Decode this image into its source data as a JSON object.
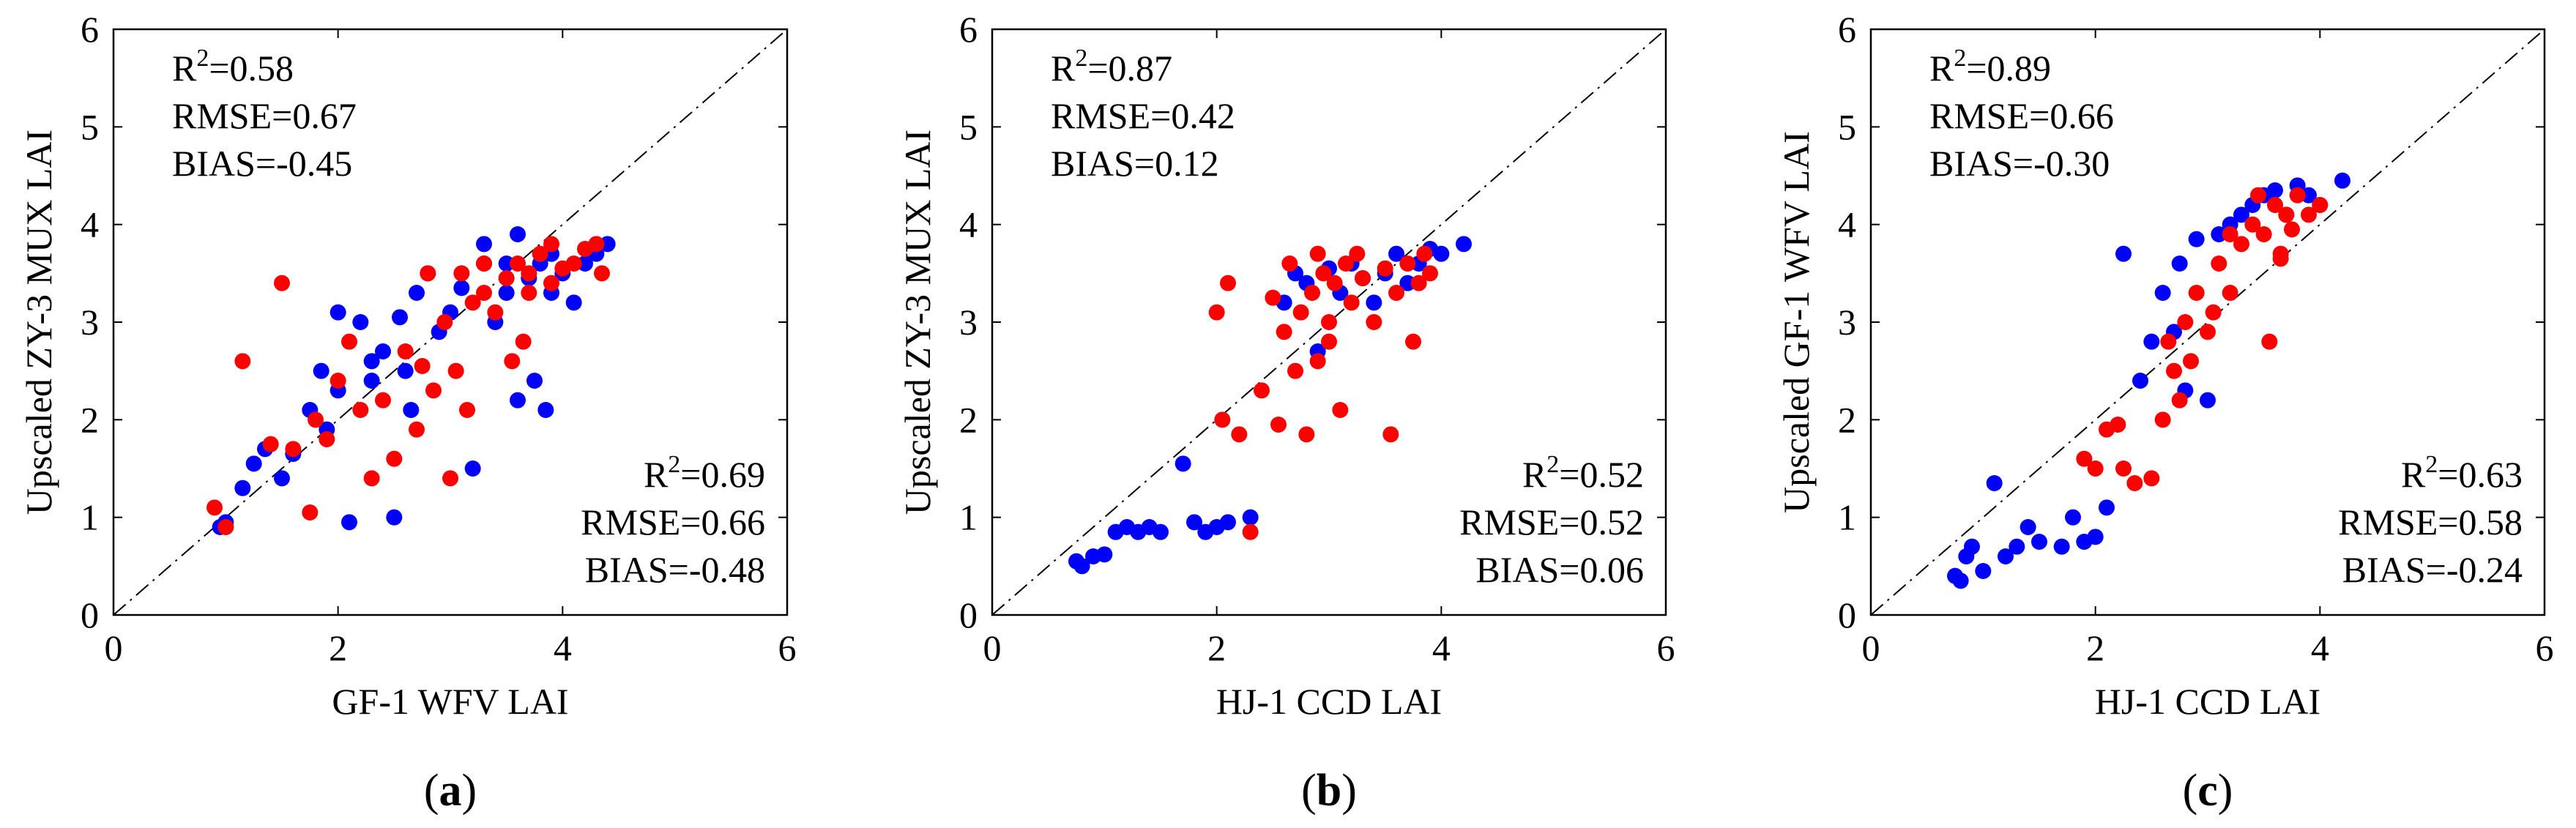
{
  "chart_data": [
    {
      "type": "scatter",
      "panel_label_prefix": "(",
      "panel_label": "a",
      "panel_label_suffix": ")",
      "xlabel": "GF-1 WFV LAI",
      "ylabel": "Upscaled ZY-3 MUX LAI",
      "xlim": [
        0,
        6
      ],
      "ylim": [
        0,
        6
      ],
      "x_ticks": [
        "0",
        "2",
        "4",
        "6"
      ],
      "y_ticks": [
        "0",
        "1",
        "2",
        "3",
        "4",
        "5",
        "6"
      ],
      "one_to_one_line": true,
      "stats_blue": {
        "r2": "=0.58",
        "rmse": "RMSE=0.67",
        "bias": "BIAS=-0.45"
      },
      "stats_red": {
        "r2": "=0.69",
        "rmse": "RMSE=0.66",
        "bias": "BIAS=-0.48"
      },
      "series": [
        {
          "color": "#0000ff",
          "points": [
            [
              0.95,
              0.9
            ],
            [
              1.0,
              0.95
            ],
            [
              1.15,
              1.3
            ],
            [
              1.25,
              1.55
            ],
            [
              1.35,
              1.7
            ],
            [
              1.5,
              1.4
            ],
            [
              1.6,
              1.65
            ],
            [
              1.75,
              2.1
            ],
            [
              1.85,
              2.5
            ],
            [
              1.9,
              1.9
            ],
            [
              2.0,
              2.3
            ],
            [
              2.1,
              0.95
            ],
            [
              2.2,
              3.0
            ],
            [
              2.3,
              2.4
            ],
            [
              2.4,
              2.7
            ],
            [
              2.5,
              1.0
            ],
            [
              2.55,
              3.05
            ],
            [
              2.65,
              2.1
            ],
            [
              2.7,
              3.3
            ],
            [
              2.8,
              3.5
            ],
            [
              2.9,
              2.9
            ],
            [
              3.0,
              3.1
            ],
            [
              3.1,
              3.35
            ],
            [
              3.2,
              1.5
            ],
            [
              3.3,
              3.6
            ],
            [
              3.4,
              3.0
            ],
            [
              3.5,
              3.3
            ],
            [
              3.6,
              2.2
            ],
            [
              3.7,
              3.45
            ],
            [
              3.75,
              2.4
            ],
            [
              3.8,
              3.6
            ],
            [
              3.85,
              2.1
            ],
            [
              3.9,
              3.3
            ],
            [
              4.0,
              3.5
            ],
            [
              4.1,
              3.2
            ],
            [
              4.2,
              3.6
            ],
            [
              4.3,
              3.7
            ],
            [
              4.4,
              3.8
            ],
            [
              2.3,
              2.6
            ],
            [
              2.6,
              2.5
            ],
            [
              2.0,
              3.1
            ],
            [
              3.3,
              3.8
            ],
            [
              3.5,
              3.6
            ],
            [
              3.6,
              3.9
            ],
            [
              3.9,
              3.7
            ]
          ]
        },
        {
          "color": "#ff0000",
          "points": [
            [
              0.9,
              1.1
            ],
            [
              1.0,
              0.9
            ],
            [
              1.15,
              2.6
            ],
            [
              1.4,
              1.75
            ],
            [
              1.5,
              3.4
            ],
            [
              1.6,
              1.7
            ],
            [
              1.75,
              1.05
            ],
            [
              1.8,
              2.0
            ],
            [
              1.9,
              1.8
            ],
            [
              2.0,
              2.4
            ],
            [
              2.1,
              2.8
            ],
            [
              2.2,
              2.1
            ],
            [
              2.3,
              1.4
            ],
            [
              2.4,
              2.2
            ],
            [
              2.5,
              1.6
            ],
            [
              2.6,
              2.7
            ],
            [
              2.7,
              1.9
            ],
            [
              2.75,
              2.55
            ],
            [
              2.85,
              2.3
            ],
            [
              2.95,
              3.0
            ],
            [
              3.0,
              1.4
            ],
            [
              3.05,
              2.5
            ],
            [
              3.1,
              3.5
            ],
            [
              3.15,
              2.1
            ],
            [
              3.2,
              3.2
            ],
            [
              3.3,
              3.3
            ],
            [
              3.4,
              3.1
            ],
            [
              3.5,
              3.45
            ],
            [
              3.55,
              2.6
            ],
            [
              3.6,
              3.6
            ],
            [
              3.65,
              2.8
            ],
            [
              3.7,
              3.3
            ],
            [
              3.8,
              3.7
            ],
            [
              3.9,
              3.4
            ],
            [
              4.0,
              3.55
            ],
            [
              4.1,
              3.6
            ],
            [
              4.2,
              3.75
            ],
            [
              4.3,
              3.8
            ],
            [
              4.35,
              3.5
            ],
            [
              2.8,
              3.5
            ],
            [
              3.3,
              3.6
            ],
            [
              3.7,
              3.5
            ],
            [
              3.9,
              3.8
            ]
          ]
        }
      ]
    },
    {
      "type": "scatter",
      "panel_label_prefix": "(",
      "panel_label": "b",
      "panel_label_suffix": ")",
      "xlabel": "HJ-1 CCD LAI",
      "ylabel": "Upscaled ZY-3 MUX LAI",
      "xlim": [
        0,
        6
      ],
      "ylim": [
        0,
        6
      ],
      "x_ticks": [
        "0",
        "2",
        "4",
        "6"
      ],
      "y_ticks": [
        "0",
        "1",
        "2",
        "3",
        "4",
        "5",
        "6"
      ],
      "one_to_one_line": true,
      "stats_blue": {
        "r2": "=0.87",
        "rmse": "RMSE=0.42",
        "bias": "BIAS=0.12"
      },
      "stats_red": {
        "r2": "=0.52",
        "rmse": "RMSE=0.52",
        "bias": "BIAS=0.06"
      },
      "series": [
        {
          "color": "#0000ff",
          "points": [
            [
              0.75,
              0.55
            ],
            [
              0.8,
              0.5
            ],
            [
              0.9,
              0.6
            ],
            [
              1.0,
              0.62
            ],
            [
              1.1,
              0.85
            ],
            [
              1.2,
              0.9
            ],
            [
              1.3,
              0.85
            ],
            [
              1.4,
              0.9
            ],
            [
              1.5,
              0.85
            ],
            [
              1.7,
              1.55
            ],
            [
              1.8,
              0.95
            ],
            [
              1.9,
              0.85
            ],
            [
              2.0,
              0.9
            ],
            [
              2.1,
              0.95
            ],
            [
              2.3,
              1.0
            ],
            [
              2.6,
              3.2
            ],
            [
              2.7,
              3.5
            ],
            [
              2.8,
              3.4
            ],
            [
              2.9,
              2.7
            ],
            [
              3.0,
              3.55
            ],
            [
              3.1,
              3.3
            ],
            [
              3.2,
              3.6
            ],
            [
              3.3,
              3.45
            ],
            [
              3.4,
              3.2
            ],
            [
              3.5,
              3.5
            ],
            [
              3.6,
              3.7
            ],
            [
              3.7,
              3.4
            ],
            [
              3.8,
              3.6
            ],
            [
              3.9,
              3.75
            ],
            [
              4.0,
              3.7
            ],
            [
              4.2,
              3.8
            ]
          ]
        },
        {
          "color": "#ff0000",
          "points": [
            [
              2.0,
              3.1
            ],
            [
              2.05,
              2.0
            ],
            [
              2.1,
              3.4
            ],
            [
              2.2,
              1.85
            ],
            [
              2.3,
              0.85
            ],
            [
              2.4,
              2.3
            ],
            [
              2.5,
              3.25
            ],
            [
              2.55,
              1.95
            ],
            [
              2.6,
              2.9
            ],
            [
              2.65,
              3.6
            ],
            [
              2.7,
              2.5
            ],
            [
              2.75,
              3.1
            ],
            [
              2.8,
              1.85
            ],
            [
              2.85,
              3.3
            ],
            [
              2.9,
              2.6
            ],
            [
              2.95,
              3.5
            ],
            [
              3.0,
              3.0
            ],
            [
              3.05,
              3.4
            ],
            [
              3.1,
              2.1
            ],
            [
              3.15,
              3.6
            ],
            [
              3.2,
              3.2
            ],
            [
              3.3,
              3.45
            ],
            [
              3.4,
              3.0
            ],
            [
              3.5,
              3.55
            ],
            [
              3.55,
              1.85
            ],
            [
              3.6,
              3.3
            ],
            [
              3.7,
              3.6
            ],
            [
              3.75,
              2.8
            ],
            [
              3.8,
              3.4
            ],
            [
              3.85,
              3.7
            ],
            [
              3.9,
              3.5
            ],
            [
              2.9,
              3.7
            ],
            [
              3.0,
              2.8
            ],
            [
              3.25,
              3.7
            ]
          ]
        }
      ]
    },
    {
      "type": "scatter",
      "panel_label_prefix": "(",
      "panel_label": "c",
      "panel_label_suffix": ")",
      "xlabel": "HJ-1 CCD LAI",
      "ylabel": "Upscaled GF-1 WFV LAI",
      "xlim": [
        0,
        6
      ],
      "ylim": [
        0,
        6
      ],
      "x_ticks": [
        "0",
        "2",
        "4",
        "6"
      ],
      "y_ticks": [
        "0",
        "1",
        "2",
        "3",
        "4",
        "5",
        "6"
      ],
      "one_to_one_line": true,
      "stats_blue": {
        "r2": "=0.89",
        "rmse": "RMSE=0.66",
        "bias": "BIAS=-0.30"
      },
      "stats_red": {
        "r2": "=0.63",
        "rmse": "RMSE=0.58",
        "bias": "BIAS=-0.24"
      },
      "series": [
        {
          "color": "#0000ff",
          "points": [
            [
              0.75,
              0.4
            ],
            [
              0.8,
              0.35
            ],
            [
              0.85,
              0.6
            ],
            [
              0.9,
              0.7
            ],
            [
              1.0,
              0.45
            ],
            [
              1.1,
              1.35
            ],
            [
              1.2,
              0.6
            ],
            [
              1.3,
              0.7
            ],
            [
              1.4,
              0.9
            ],
            [
              1.5,
              0.75
            ],
            [
              1.7,
              0.7
            ],
            [
              1.8,
              1.0
            ],
            [
              1.9,
              0.75
            ],
            [
              2.0,
              0.8
            ],
            [
              2.1,
              1.1
            ],
            [
              2.25,
              3.7
            ],
            [
              2.4,
              2.4
            ],
            [
              2.5,
              2.8
            ],
            [
              2.6,
              3.3
            ],
            [
              2.7,
              2.9
            ],
            [
              2.75,
              3.6
            ],
            [
              2.8,
              2.3
            ],
            [
              2.9,
              3.85
            ],
            [
              3.0,
              2.2
            ],
            [
              3.1,
              3.9
            ],
            [
              3.2,
              4.0
            ],
            [
              3.3,
              4.1
            ],
            [
              3.4,
              4.2
            ],
            [
              3.5,
              4.3
            ],
            [
              3.6,
              4.35
            ],
            [
              3.7,
              4.1
            ],
            [
              3.8,
              4.4
            ],
            [
              3.9,
              4.3
            ],
            [
              4.0,
              4.2
            ],
            [
              4.2,
              4.45
            ]
          ]
        },
        {
          "color": "#ff0000",
          "points": [
            [
              1.9,
              1.6
            ],
            [
              2.0,
              1.5
            ],
            [
              2.1,
              1.9
            ],
            [
              2.2,
              1.95
            ],
            [
              2.25,
              1.5
            ],
            [
              2.35,
              1.35
            ],
            [
              2.5,
              1.4
            ],
            [
              2.6,
              2.0
            ],
            [
              2.65,
              2.8
            ],
            [
              2.7,
              2.5
            ],
            [
              2.75,
              2.2
            ],
            [
              2.8,
              3.0
            ],
            [
              2.85,
              2.6
            ],
            [
              2.9,
              3.3
            ],
            [
              3.0,
              2.9
            ],
            [
              3.05,
              3.1
            ],
            [
              3.1,
              3.6
            ],
            [
              3.2,
              3.3
            ],
            [
              3.3,
              3.8
            ],
            [
              3.4,
              4.0
            ],
            [
              3.5,
              3.9
            ],
            [
              3.55,
              2.8
            ],
            [
              3.6,
              4.2
            ],
            [
              3.65,
              3.7
            ],
            [
              3.7,
              4.1
            ],
            [
              3.75,
              3.95
            ],
            [
              3.8,
              4.3
            ],
            [
              3.9,
              4.1
            ],
            [
              4.0,
              4.2
            ],
            [
              3.2,
              3.9
            ],
            [
              3.45,
              4.3
            ],
            [
              3.65,
              3.65
            ]
          ]
        }
      ]
    }
  ]
}
